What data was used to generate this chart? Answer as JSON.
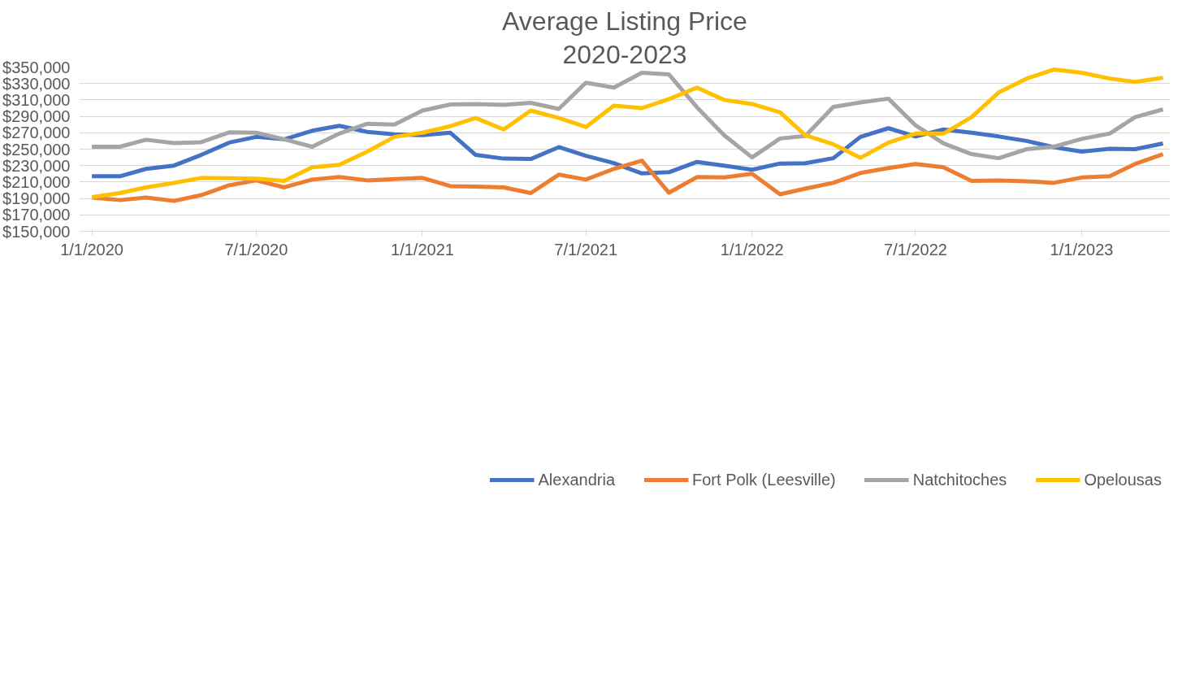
{
  "chart_data": {
    "type": "line",
    "title": "Average Listing Price",
    "subtitle": "2020-2023",
    "x": [
      "2020-01-01",
      "2020-02-01",
      "2020-03-01",
      "2020-04-01",
      "2020-05-01",
      "2020-06-01",
      "2020-07-01",
      "2020-08-01",
      "2020-09-01",
      "2020-10-01",
      "2020-11-01",
      "2020-12-01",
      "2021-01-01",
      "2021-02-01",
      "2021-03-01",
      "2021-04-01",
      "2021-05-01",
      "2021-06-01",
      "2021-07-01",
      "2021-08-01",
      "2021-09-01",
      "2021-10-01",
      "2021-11-01",
      "2021-12-01",
      "2022-01-01",
      "2022-02-01",
      "2022-03-01",
      "2022-04-01",
      "2022-05-01",
      "2022-06-01",
      "2022-07-01",
      "2022-08-01",
      "2022-09-01",
      "2022-10-01",
      "2022-11-01",
      "2022-12-01",
      "2023-01-01",
      "2023-02-01",
      "2023-03-01",
      "2023-04-01"
    ],
    "series": [
      {
        "name": "Alexandria",
        "color": "#4472c4",
        "values": [
          217000,
          217000,
          226000,
          230000,
          243000,
          258000,
          265000,
          262000,
          272500,
          278500,
          271000,
          268000,
          267000,
          270000,
          243000,
          238500,
          238000,
          252500,
          242000,
          233000,
          220500,
          222000,
          234500,
          230000,
          225000,
          232500,
          233000,
          239000,
          265000,
          275500,
          265500,
          274000,
          270000,
          265500,
          260000,
          252500,
          247000,
          250500,
          250000,
          257000
        ]
      },
      {
        "name": "Fort Polk (Leesville)",
        "color": "#ed7d31",
        "values": [
          191000,
          188000,
          191000,
          187000,
          194000,
          206000,
          212000,
          203500,
          213000,
          216000,
          212000,
          213500,
          215000,
          205000,
          204500,
          203500,
          196500,
          219000,
          213000,
          226000,
          236000,
          197000,
          216000,
          215500,
          220000,
          195000,
          202000,
          209000,
          221000,
          227000,
          232000,
          228000,
          211500,
          212000,
          211000,
          209000,
          215500,
          217000,
          232000,
          244000
        ]
      },
      {
        "name": "Natchitoches",
        "color": "#a5a5a5",
        "values": [
          253000,
          253000,
          261500,
          257500,
          258500,
          270500,
          270000,
          262000,
          253000,
          269000,
          281000,
          280000,
          297000,
          304500,
          305000,
          304000,
          306500,
          299000,
          331000,
          325000,
          343000,
          341000,
          301000,
          267000,
          240000,
          263000,
          266000,
          301500,
          307000,
          311500,
          279000,
          257000,
          244000,
          239000,
          250000,
          253000,
          262500,
          269000,
          289000,
          298500
        ]
      },
      {
        "name": "Opelousas",
        "color": "#ffc000",
        "values": [
          191500,
          196500,
          203500,
          209000,
          215000,
          214500,
          214000,
          211500,
          228000,
          231000,
          247000,
          265000,
          270000,
          278000,
          288000,
          274000,
          297000,
          288000,
          277000,
          303000,
          300000,
          311000,
          325000,
          310000,
          305000,
          295000,
          267000,
          256000,
          239500,
          258000,
          269000,
          269000,
          289000,
          319000,
          336000,
          347000,
          343000,
          336000,
          332000,
          337000
        ]
      }
    ],
    "xlim": [
      "2019-12-18",
      "2023-04-09"
    ],
    "xticks": [
      {
        "value": "2020-01-01",
        "label": "1/1/2020"
      },
      {
        "value": "2020-07-01",
        "label": "7/1/2020"
      },
      {
        "value": "2021-01-01",
        "label": "1/1/2021"
      },
      {
        "value": "2021-07-01",
        "label": "7/1/2021"
      },
      {
        "value": "2022-01-01",
        "label": "1/1/2022"
      },
      {
        "value": "2022-07-01",
        "label": "7/1/2022"
      },
      {
        "value": "2023-01-01",
        "label": "1/1/2023"
      }
    ],
    "ylim": [
      150000,
      350000
    ],
    "yticks": [
      {
        "value": 150000,
        "label": "$150,000"
      },
      {
        "value": 170000,
        "label": "$170,000"
      },
      {
        "value": 190000,
        "label": "$190,000"
      },
      {
        "value": 210000,
        "label": "$210,000"
      },
      {
        "value": 230000,
        "label": "$230,000"
      },
      {
        "value": 250000,
        "label": "$250,000"
      },
      {
        "value": 270000,
        "label": "$270,000"
      },
      {
        "value": 290000,
        "label": "$290,000"
      },
      {
        "value": 310000,
        "label": "$310,000"
      },
      {
        "value": 330000,
        "label": "$330,000"
      },
      {
        "value": 350000,
        "label": "$350,000"
      }
    ],
    "grid": "y",
    "legend": "bottom",
    "line_style": "solid",
    "marker": "none"
  }
}
